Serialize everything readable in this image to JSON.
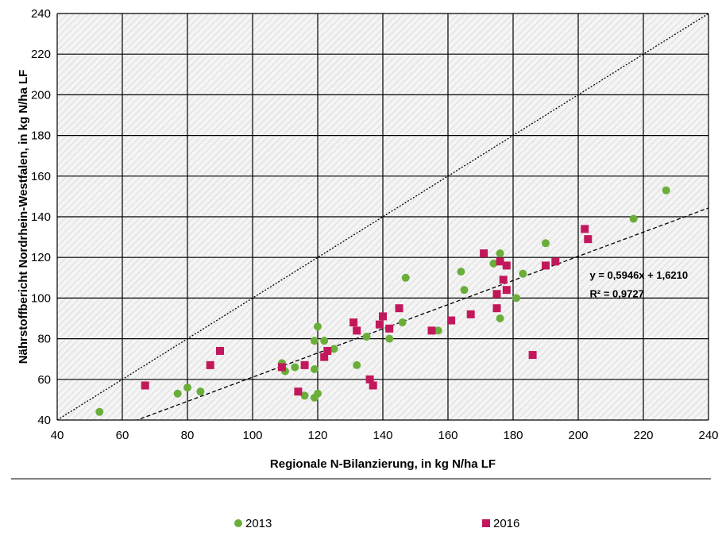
{
  "chart_data": {
    "type": "scatter",
    "xlabel": "Regionale  N-Bilanzierung,  in kg N/ha LF",
    "ylabel": "Nährstoffbericht Nordrhein-Westfalen, in kg N/ha LF",
    "xlim": [
      40,
      240
    ],
    "ylim": [
      40,
      240
    ],
    "xticks": [
      40,
      60,
      80,
      100,
      120,
      140,
      160,
      180,
      200,
      220,
      240
    ],
    "yticks": [
      40,
      60,
      80,
      100,
      120,
      140,
      160,
      180,
      200,
      220,
      240
    ],
    "grid": true,
    "legend_position": "bottom",
    "series": [
      {
        "name": "2013",
        "marker": "circle",
        "color": "#6AAE3A",
        "points": [
          [
            53,
            44
          ],
          [
            77,
            53
          ],
          [
            80,
            56
          ],
          [
            84,
            54
          ],
          [
            109,
            68
          ],
          [
            110,
            64
          ],
          [
            113,
            66
          ],
          [
            116,
            52
          ],
          [
            119,
            51
          ],
          [
            119,
            79
          ],
          [
            119,
            65
          ],
          [
            120,
            53
          ],
          [
            120,
            86
          ],
          [
            122,
            79
          ],
          [
            125,
            75
          ],
          [
            132,
            67
          ],
          [
            135,
            81
          ],
          [
            142,
            80
          ],
          [
            146,
            88
          ],
          [
            147,
            110
          ],
          [
            157,
            84
          ],
          [
            164,
            113
          ],
          [
            165,
            104
          ],
          [
            174,
            117
          ],
          [
            176,
            122
          ],
          [
            176,
            90
          ],
          [
            181,
            100
          ],
          [
            183,
            112
          ],
          [
            190,
            127
          ],
          [
            217,
            139
          ],
          [
            227,
            153
          ]
        ]
      },
      {
        "name": "2016",
        "marker": "square",
        "color": "#C2185B",
        "points": [
          [
            67,
            57
          ],
          [
            87,
            67
          ],
          [
            90,
            74
          ],
          [
            109,
            66
          ],
          [
            114,
            54
          ],
          [
            116,
            67
          ],
          [
            122,
            71
          ],
          [
            123,
            74
          ],
          [
            131,
            88
          ],
          [
            132,
            84
          ],
          [
            136,
            60
          ],
          [
            137,
            57
          ],
          [
            139,
            87
          ],
          [
            140,
            91
          ],
          [
            142,
            85
          ],
          [
            145,
            95
          ],
          [
            155,
            84
          ],
          [
            161,
            89
          ],
          [
            167,
            92
          ],
          [
            171,
            122
          ],
          [
            175,
            102
          ],
          [
            175,
            95
          ],
          [
            176,
            118
          ],
          [
            177,
            109
          ],
          [
            178,
            116
          ],
          [
            178,
            104
          ],
          [
            186,
            72
          ],
          [
            190,
            116
          ],
          [
            193,
            118
          ],
          [
            202,
            134
          ],
          [
            203,
            129
          ]
        ]
      }
    ],
    "lines": [
      {
        "kind": "identity",
        "from": [
          40,
          40
        ],
        "to": [
          240,
          240
        ],
        "style": "dotted"
      },
      {
        "kind": "regression",
        "slope": 0.5946,
        "intercept": 1.621,
        "style": "dashed"
      }
    ],
    "annotations": [
      {
        "text": "y = 0,5946x + 1,6210",
        "x": 205,
        "y": 111
      },
      {
        "text": "R² = 0,9727",
        "x": 205,
        "y": 102
      }
    ]
  }
}
